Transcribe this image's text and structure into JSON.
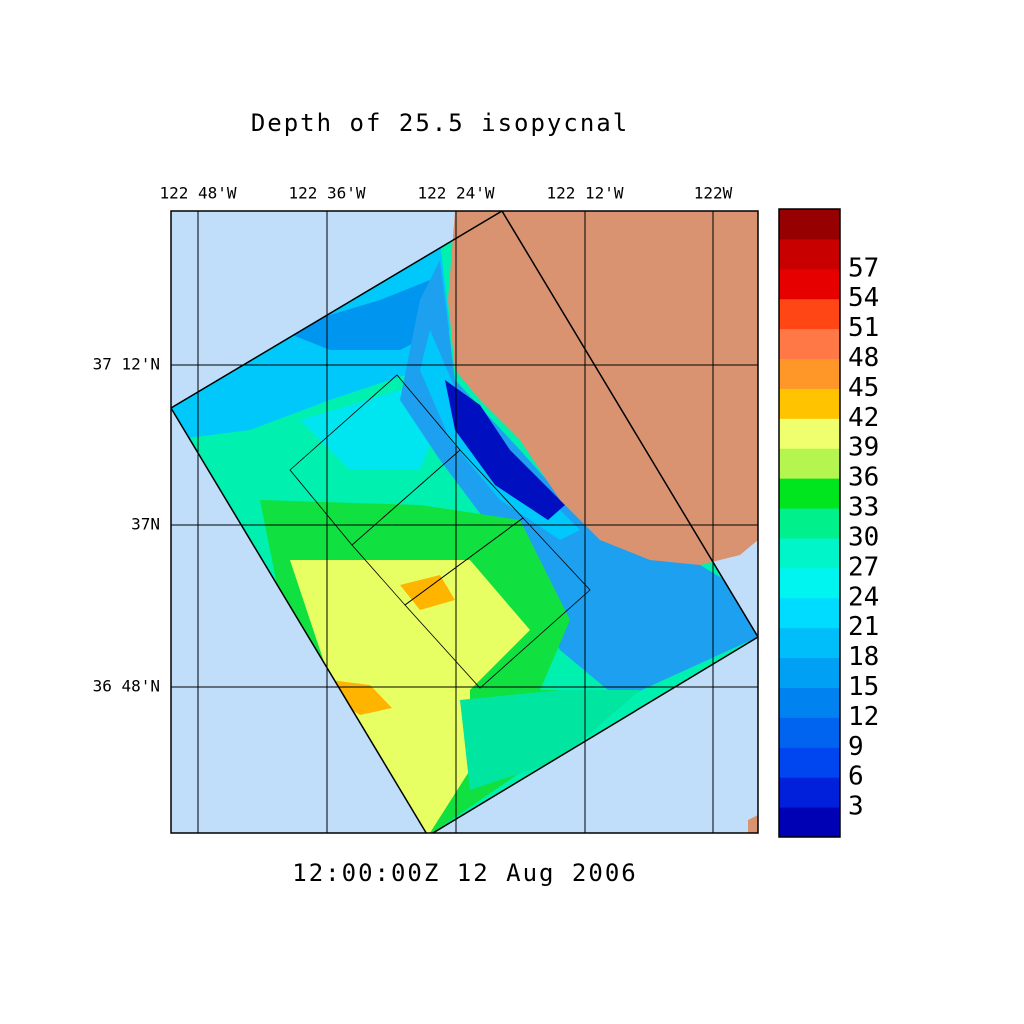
{
  "title": "Depth of 25.5 isopycnal",
  "timestamp": "12:00:00Z  12 Aug 2006",
  "lon_labels": [
    "122 48'W",
    "122 36'W",
    "122 24'W",
    "122 12'W",
    "122W"
  ],
  "lat_labels": [
    "37 12'N",
    "37N",
    "36 48'N"
  ],
  "colorbar": {
    "levels": [
      3,
      6,
      9,
      12,
      15,
      18,
      21,
      24,
      27,
      30,
      33,
      36,
      39,
      42,
      45,
      48,
      51,
      54,
      57
    ],
    "colors": [
      "#0000b4",
      "#0020dc",
      "#0046f0",
      "#0064f0",
      "#0082f0",
      "#00a0f5",
      "#00befa",
      "#00dcff",
      "#00f5f0",
      "#00f5c8",
      "#00f08c",
      "#00e61e",
      "#b4f550",
      "#f0ff6e",
      "#ffc300",
      "#ff9628",
      "#ff7846",
      "#ff4614",
      "#e60000",
      "#c80000",
      "#960000"
    ]
  }
}
